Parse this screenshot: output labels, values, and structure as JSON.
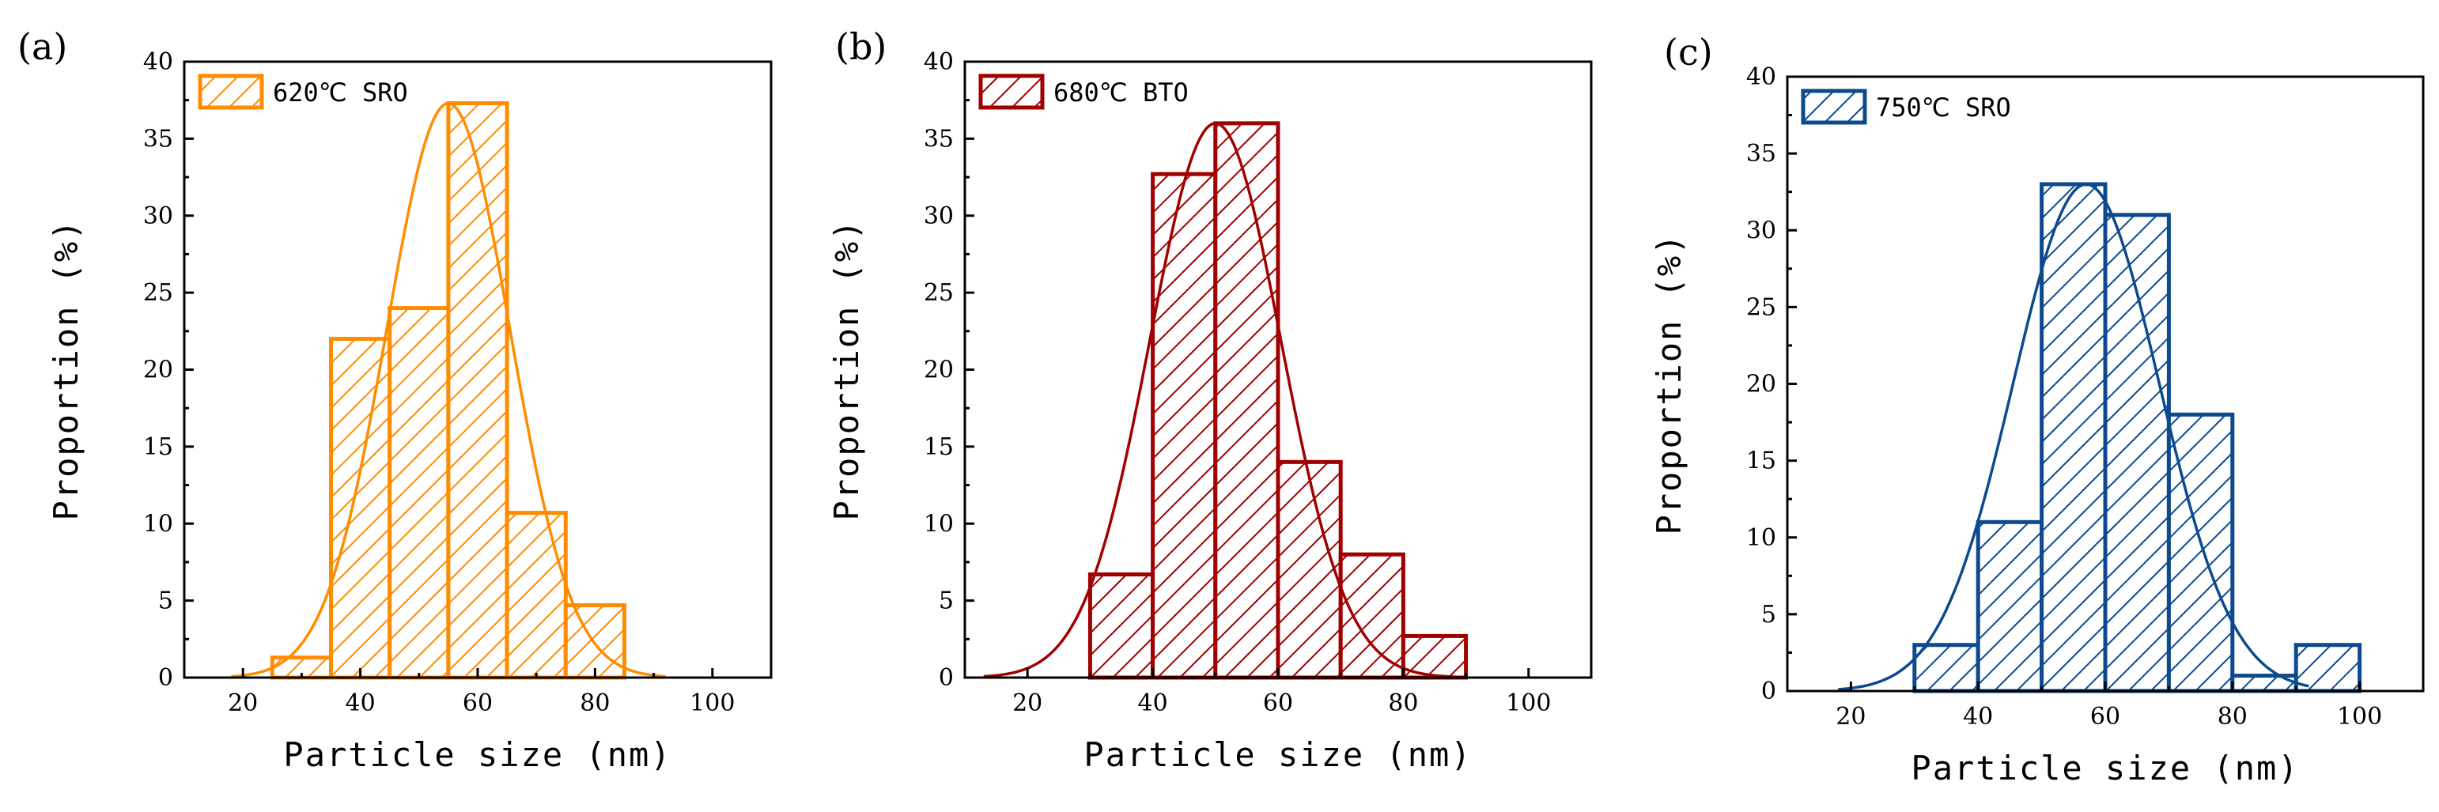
{
  "chart_data": [
    {
      "type": "bar",
      "panel_label": "(a)",
      "legend": "620℃ SRO",
      "color": "#FF8C00",
      "bin_width": 10,
      "bin_centers": [
        30,
        40,
        50,
        60,
        70,
        80
      ],
      "values": [
        1.3,
        22,
        24,
        37.3,
        10.7,
        4.7
      ],
      "fit_curve": {
        "type": "gaussian",
        "amplitude": 37.3,
        "mean": 55,
        "sigma": 10.5,
        "x_range": [
          18,
          92
        ]
      },
      "xlabel": "Particle size (nm)",
      "ylabel": "Proportion (%)",
      "xlim": [
        10,
        110
      ],
      "ylim": [
        0,
        40
      ],
      "xticks": [
        20,
        40,
        60,
        80,
        100
      ],
      "yticks": [
        0,
        5,
        10,
        15,
        20,
        25,
        30,
        35,
        40
      ],
      "legend_position": "top-left"
    },
    {
      "type": "bar",
      "panel_label": "(b)",
      "legend": "680℃ BTO",
      "color": "#A00000",
      "bin_width": 10,
      "bin_centers": [
        35,
        45,
        55,
        65,
        75,
        85
      ],
      "values": [
        6.7,
        32.7,
        36,
        14,
        8,
        2.7
      ],
      "fit_curve": {
        "type": "gaussian",
        "amplitude": 36,
        "mean": 50,
        "sigma": 10.5,
        "x_range": [
          13,
          90
        ]
      },
      "xlabel": "Particle size (nm)",
      "ylabel": "Proportion (%)",
      "xlim": [
        10,
        110
      ],
      "ylim": [
        0,
        40
      ],
      "xticks": [
        20,
        40,
        60,
        80,
        100
      ],
      "yticks": [
        0,
        5,
        10,
        15,
        20,
        25,
        30,
        35,
        40
      ],
      "legend_position": "top-left"
    },
    {
      "type": "bar",
      "panel_label": "(c)",
      "legend": "750℃ SRO",
      "color": "#0C4A8E",
      "bin_width": 10,
      "bin_centers": [
        35,
        45,
        55,
        65,
        75,
        85,
        95
      ],
      "values": [
        3,
        11,
        33,
        31,
        18,
        1,
        3
      ],
      "fit_curve": {
        "type": "gaussian",
        "amplitude": 33,
        "mean": 57,
        "sigma": 11.5,
        "x_range": [
          18,
          92
        ]
      },
      "xlabel": "Particle size (nm)",
      "ylabel": "Proportion (%)",
      "xlim": [
        10,
        110
      ],
      "ylim": [
        0,
        40
      ],
      "xticks": [
        20,
        40,
        60,
        80,
        100
      ],
      "yticks": [
        0,
        5,
        10,
        15,
        20,
        25,
        30,
        35,
        40
      ],
      "legend_position": "top-left"
    }
  ]
}
